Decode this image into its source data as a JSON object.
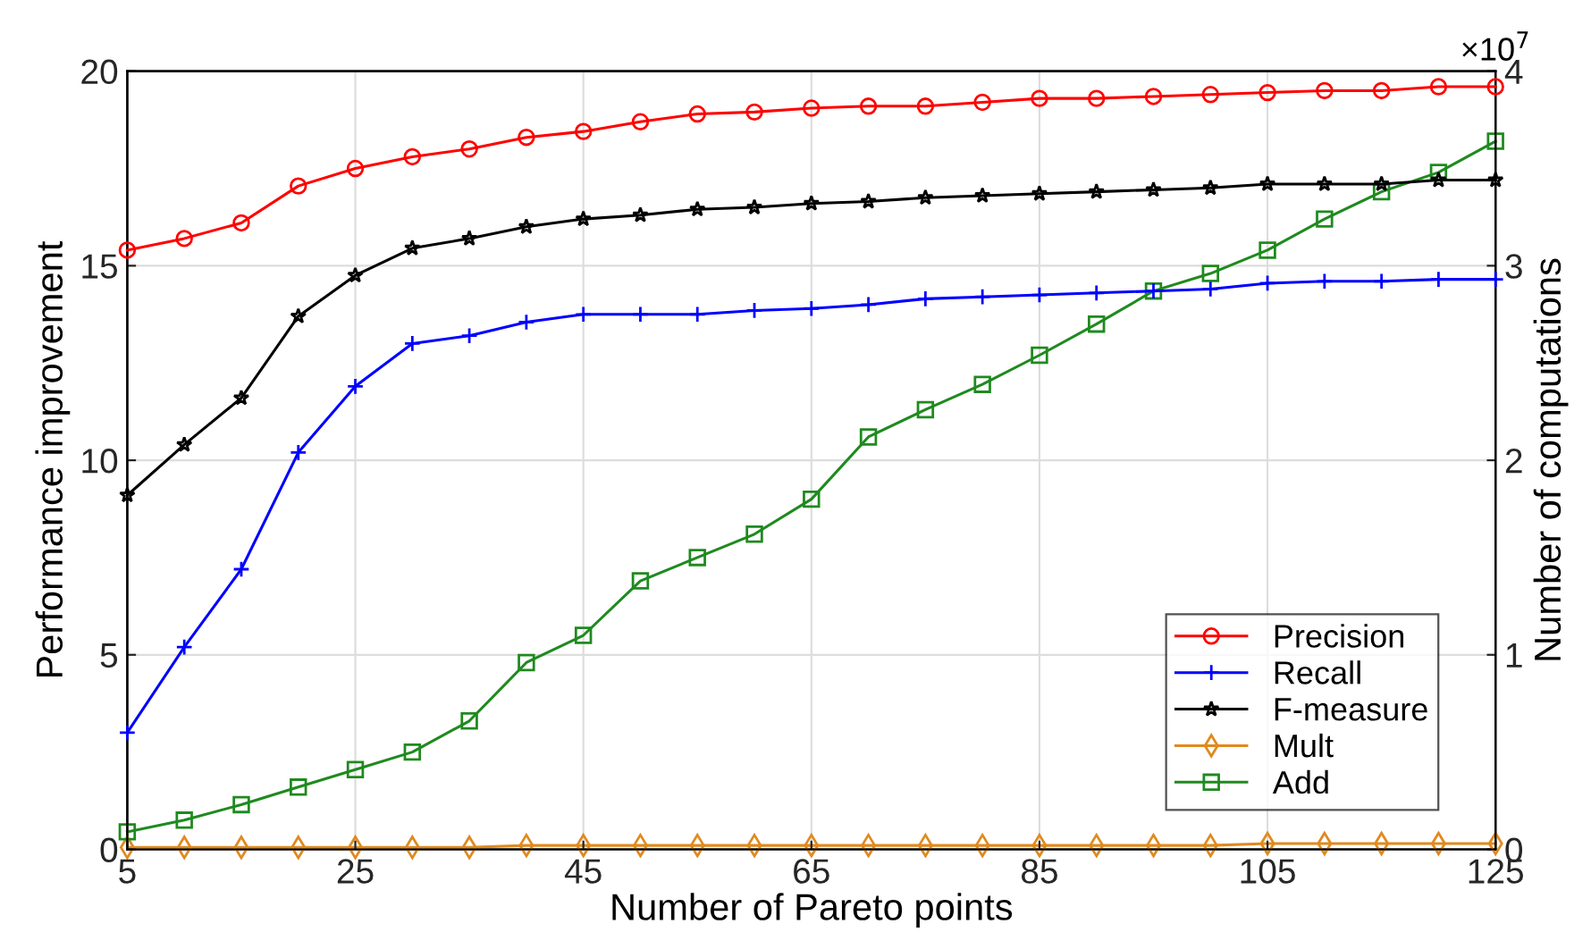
{
  "chart_data": {
    "type": "line",
    "xlabel": "Number of Pareto points",
    "ylabel": "Performance improvement",
    "y2label": "Number of computations",
    "x": [
      5,
      10,
      15,
      20,
      25,
      30,
      35,
      40,
      45,
      50,
      55,
      60,
      65,
      70,
      75,
      80,
      85,
      90,
      95,
      100,
      105,
      110,
      115,
      120,
      125
    ],
    "xlim": [
      5,
      125
    ],
    "xticks": [
      5,
      25,
      45,
      65,
      85,
      105,
      125
    ],
    "ylim": [
      0,
      20
    ],
    "yticks": [
      0,
      5,
      10,
      15,
      20
    ],
    "y2lim": [
      0,
      4
    ],
    "y2ticks": [
      0,
      1,
      2,
      3,
      4
    ],
    "annotations": [
      "×10$^{7}$"
    ],
    "grid": true,
    "legend": "bottom right",
    "series": [
      {
        "name": "Precision",
        "color": "#ff0000",
        "marker": "circle",
        "values": [
          15.4,
          15.7,
          16.1,
          17.05,
          17.5,
          17.8,
          18.0,
          18.3,
          18.45,
          18.7,
          18.9,
          18.95,
          19.05,
          19.1,
          19.1,
          19.2,
          19.3,
          19.3,
          19.35,
          19.4,
          19.45,
          19.5,
          19.5,
          19.6,
          19.6
        ]
      },
      {
        "name": "Recall",
        "color": "#0000ff",
        "marker": "plus",
        "values": [
          3.0,
          5.2,
          7.2,
          10.2,
          11.9,
          13.0,
          13.2,
          13.55,
          13.75,
          13.75,
          13.75,
          13.85,
          13.9,
          14.0,
          14.15,
          14.2,
          14.25,
          14.3,
          14.35,
          14.4,
          14.55,
          14.6,
          14.6,
          14.65,
          14.65
        ]
      },
      {
        "name": "F-measure",
        "color": "#000000",
        "marker": "star",
        "values": [
          9.1,
          10.4,
          11.6,
          13.7,
          14.75,
          15.45,
          15.7,
          16.0,
          16.2,
          16.3,
          16.45,
          16.5,
          16.6,
          16.65,
          16.75,
          16.8,
          16.85,
          16.9,
          16.95,
          17.0,
          17.1,
          17.1,
          17.1,
          17.2,
          17.2
        ]
      },
      {
        "name": "Mult",
        "color": "#e08a1e",
        "marker": "diamond",
        "axis": "y2",
        "values": [
          0.01,
          0.01,
          0.01,
          0.01,
          0.01,
          0.01,
          0.01,
          0.02,
          0.02,
          0.02,
          0.02,
          0.02,
          0.02,
          0.02,
          0.02,
          0.02,
          0.02,
          0.02,
          0.02,
          0.02,
          0.03,
          0.03,
          0.03,
          0.03,
          0.03
        ]
      },
      {
        "name": "Add",
        "color": "#1f8a1f",
        "marker": "square",
        "axis": "y2",
        "values": [
          0.09,
          0.15,
          0.23,
          0.32,
          0.41,
          0.5,
          0.66,
          0.96,
          1.1,
          1.38,
          1.5,
          1.62,
          1.8,
          2.12,
          2.26,
          2.39,
          2.54,
          2.7,
          2.87,
          2.96,
          3.08,
          3.24,
          3.38,
          3.48,
          3.64
        ]
      }
    ]
  }
}
